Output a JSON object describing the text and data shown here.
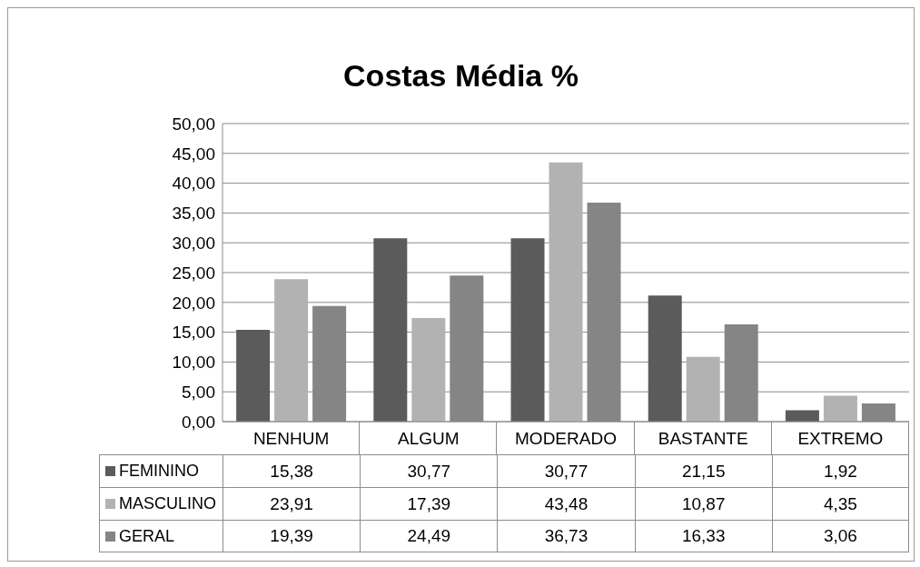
{
  "chart_data": {
    "type": "bar",
    "title": "Costas Média %",
    "categories": [
      "NENHUM",
      "ALGUM",
      "MODERADO",
      "BASTANTE",
      "EXTREMO"
    ],
    "series": [
      {
        "name": "FEMININO",
        "color": "#5b5b5b",
        "values": [
          15.38,
          30.77,
          30.77,
          21.15,
          1.92
        ],
        "value_labels": [
          "15,38",
          "30,77",
          "30,77",
          "21,15",
          "1,92"
        ]
      },
      {
        "name": "MASCULINO",
        "color": "#b2b2b2",
        "values": [
          23.91,
          17.39,
          43.48,
          10.87,
          4.35
        ],
        "value_labels": [
          "23,91",
          "17,39",
          "43,48",
          "10,87",
          "4,35"
        ]
      },
      {
        "name": "GERAL",
        "color": "#858585",
        "values": [
          19.39,
          24.49,
          36.73,
          16.33,
          3.06
        ],
        "value_labels": [
          "19,39",
          "24,49",
          "36,73",
          "16,33",
          "3,06"
        ]
      }
    ],
    "ylim": [
      0,
      50
    ],
    "yticks": [
      {
        "value": 0,
        "label": "0,00"
      },
      {
        "value": 5,
        "label": "5,00"
      },
      {
        "value": 10,
        "label": "10,00"
      },
      {
        "value": 15,
        "label": "15,00"
      },
      {
        "value": 20,
        "label": "20,00"
      },
      {
        "value": 25,
        "label": "25,00"
      },
      {
        "value": 30,
        "label": "30,00"
      },
      {
        "value": 35,
        "label": "35,00"
      },
      {
        "value": 40,
        "label": "40,00"
      },
      {
        "value": 45,
        "label": "45,00"
      },
      {
        "value": 50,
        "label": "50,00"
      }
    ],
    "grid": "y",
    "legend": "bottom"
  }
}
